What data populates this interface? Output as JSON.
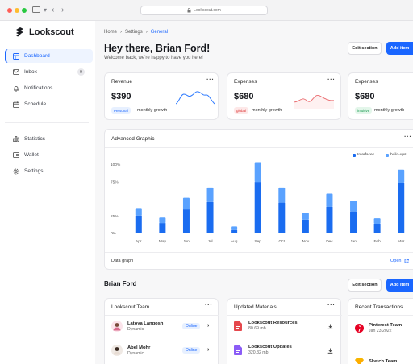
{
  "browser": {
    "url": "Lookscout.com"
  },
  "app": {
    "name": "Lookscout"
  },
  "sidebar": {
    "items": [
      {
        "label": "Dashboard"
      },
      {
        "label": "Inbox",
        "badge": "9"
      },
      {
        "label": "Notifications"
      },
      {
        "label": "Schedule"
      },
      {
        "label": "Statistics"
      },
      {
        "label": "Wallet"
      },
      {
        "label": "Settings"
      }
    ]
  },
  "breadcrumb": [
    "Home",
    "Settings",
    "General"
  ],
  "header": {
    "title": "Hey there, Brian Ford!",
    "subtitle": "Welcome back, we're happy to have you here!",
    "edit_label": "Edit section",
    "add_label": "Add item"
  },
  "kpis": [
    {
      "title": "Revenue",
      "value": "$390",
      "tag": "Personal",
      "note": "monthly growth",
      "color": "#1a66ff"
    },
    {
      "title": "Expenses",
      "value": "$680",
      "tag": "global",
      "note": "monthly growth",
      "color": "#e23a3a"
    },
    {
      "title": "Expenses",
      "value": "$680",
      "tag": "intuitive",
      "note": "monthly growth",
      "color": "#1f9d55"
    }
  ],
  "graph": {
    "title": "Advanced Graphic",
    "footer": "Data graph",
    "open_label": "Open",
    "legend": [
      "Interfaces",
      "build-ups"
    ]
  },
  "chart_data": {
    "type": "bar",
    "categories": [
      "Apr",
      "May",
      "Jun",
      "Jul",
      "Aug",
      "Sep",
      "Oct",
      "Nov",
      "Dec",
      "Jan",
      "Feb",
      "Mar"
    ],
    "y_ticks": [
      "100%",
      "75%",
      "25%",
      "0%"
    ],
    "series": [
      {
        "name": "Interfaces",
        "values": [
          25,
          14,
          34,
          45,
          5,
          74,
          44,
          19,
          38,
          31,
          13,
          73
        ],
        "color": "#1a6cf0"
      },
      {
        "name": "build-ups",
        "values": [
          11,
          8,
          17,
          21,
          4,
          29,
          22,
          10,
          19,
          16,
          8,
          19
        ],
        "color": "#5aa2ff"
      }
    ]
  },
  "section": {
    "title": "Brian Ford",
    "edit_label": "Edit section",
    "add_label": "Add item"
  },
  "team": {
    "title": "Lookscout Team",
    "members": [
      {
        "name": "Latoya Langosh",
        "role": "Dynamic",
        "status": "Online"
      },
      {
        "name": "Abel Mohr",
        "role": "Dynamic",
        "status": "Online"
      }
    ]
  },
  "materials": {
    "title": "Updated Materials",
    "items": [
      {
        "name": "Lookscout Resources",
        "size": "80.69 mb",
        "color": "#e5484d"
      },
      {
        "name": "Lookscout Updates",
        "size": "320.32 mb",
        "color": "#8b5cf6"
      }
    ]
  },
  "transactions": {
    "title": "Recent Transactions",
    "items": [
      {
        "name": "Pinterest Team",
        "date": "Jan 23 2022"
      },
      {
        "name": "Sketch Team",
        "date": ""
      }
    ]
  }
}
